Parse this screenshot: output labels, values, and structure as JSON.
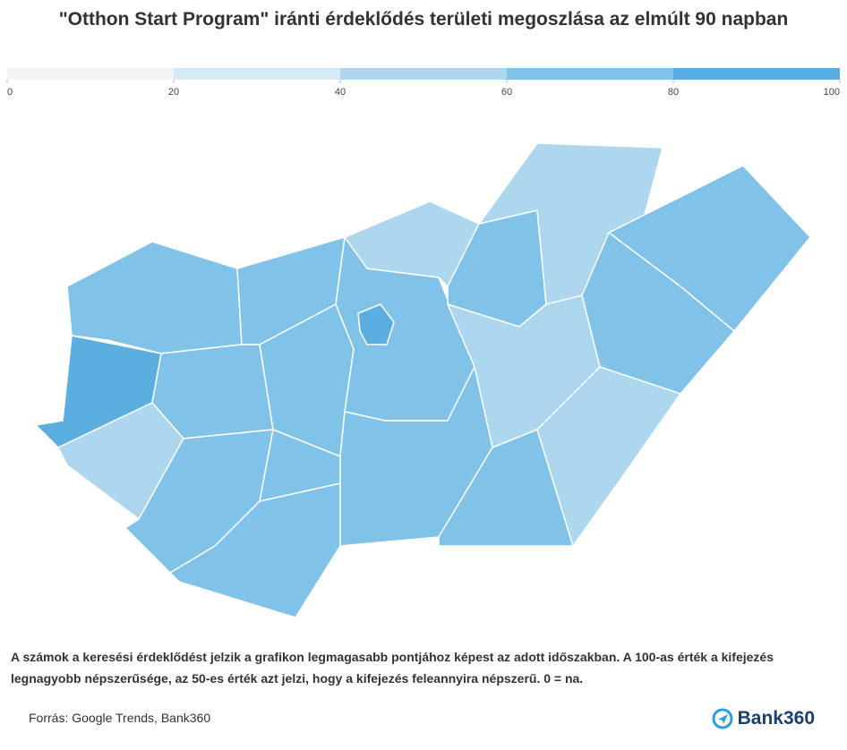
{
  "chart_data": {
    "type": "choropleth",
    "title": "\"Otthon Start Program\" iránti érdeklődés területi megoszlása az elmúlt 90 napban",
    "scale": {
      "ticks": [
        0,
        20,
        40,
        60,
        80,
        100
      ],
      "colors": [
        "#f3f3f3",
        "#d6eaf6",
        "#acd7ef",
        "#80c2e8",
        "#5aaee0"
      ]
    },
    "categories": [
      null,
      null,
      null,
      null,
      null,
      null,
      null,
      null,
      null,
      null,
      null,
      null,
      null,
      null,
      null,
      null,
      null,
      null,
      null,
      null
    ],
    "values": [
      70,
      70,
      90,
      70,
      50,
      70,
      70,
      70,
      70,
      70,
      90,
      50,
      70,
      50,
      70,
      70,
      50,
      70,
      70,
      50
    ],
    "note": "A számok a keresési érdeklődést jelzik a grafikon legmagasabb pontjához képest az adott időszakban. A 100-as érték a kifejezés legnagyobb népszerűsége, az 50-es érték azt jelzi, hogy a kifejezés feleannyira népszerű. 0 = na.",
    "source": "Forrás: Google Trends, Bank360",
    "logo": "Bank360"
  }
}
